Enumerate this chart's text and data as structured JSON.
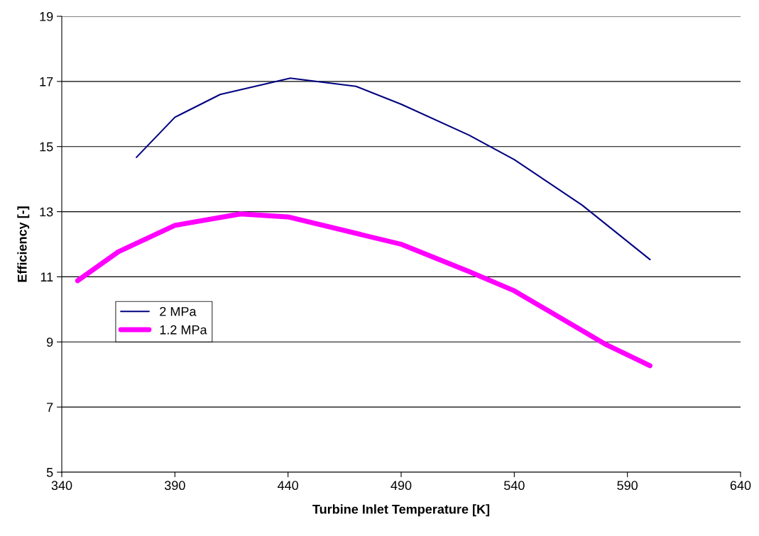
{
  "chart_data": {
    "type": "line",
    "xlabel": "Turbine Inlet Temperature [K]",
    "ylabel": "Efficiency [-]",
    "xlim": [
      340,
      640
    ],
    "xticks": [
      340,
      390,
      440,
      490,
      540,
      590,
      640
    ],
    "ylim": [
      5,
      19
    ],
    "yticks": [
      5,
      7,
      9,
      11,
      13,
      15,
      17,
      19
    ],
    "grid": "y",
    "legend": "left",
    "marker": "none",
    "line_style": "solid",
    "series": [
      {
        "name": "2 MPa",
        "color": "#000080",
        "x": [
          373,
          390,
          410,
          441,
          470,
          490,
          520,
          540,
          570,
          600
        ],
        "values": [
          14.67,
          15.9,
          16.6,
          17.1,
          16.85,
          16.3,
          15.35,
          14.6,
          13.2,
          11.53
        ]
      },
      {
        "name": "1.2 MPa",
        "color": "#ff00ff",
        "x": [
          347,
          365,
          390,
          419,
          440,
          490,
          520,
          540,
          580,
          600
        ],
        "values": [
          10.88,
          11.77,
          12.58,
          12.93,
          12.84,
          12.0,
          11.16,
          10.57,
          8.94,
          8.27
        ]
      }
    ]
  }
}
